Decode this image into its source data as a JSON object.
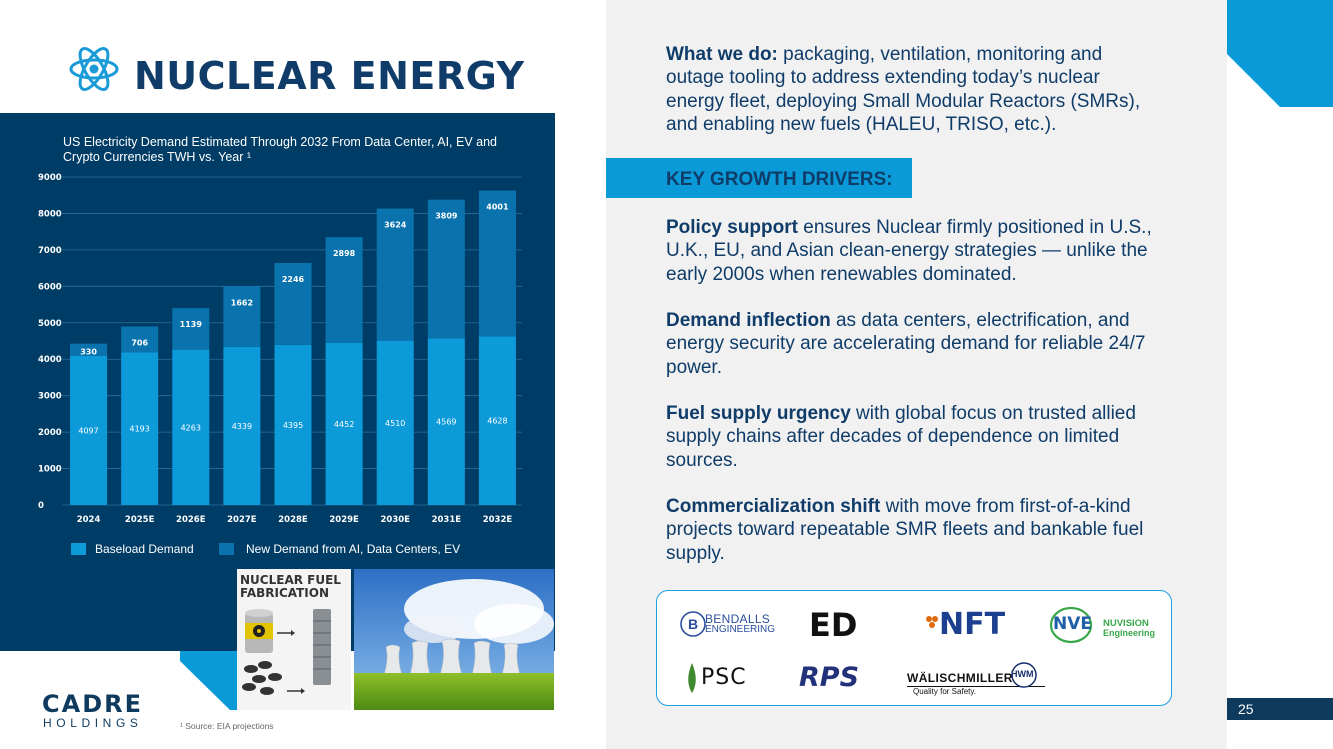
{
  "title": "NUCLEAR ENERGY",
  "chart_data": {
    "type": "bar",
    "stacked": true,
    "title": "US Electricity Demand Estimated Through 2032 From Data Center, AI, EV and Crypto Currencies TWH vs. Year ¹",
    "categories": [
      "2024",
      "2025E",
      "2026E",
      "2027E",
      "2028E",
      "2029E",
      "2030E",
      "2031E",
      "2032E"
    ],
    "series": [
      {
        "name": "Baseload Demand",
        "color": "#0c9ad9",
        "values": [
          4097,
          4193,
          4263,
          4339,
          4395,
          4452,
          4510,
          4569,
          4628
        ]
      },
      {
        "name": "New Demand from AI, Data Centers, EV",
        "color": "#0a72ad",
        "values": [
          330,
          706,
          1139,
          1662,
          2246,
          2898,
          3624,
          3809,
          4001
        ]
      }
    ],
    "yticks": [
      "0",
      "1000",
      "2000",
      "3000",
      "4000",
      "5000",
      "6000",
      "7000",
      "8000",
      "9000"
    ],
    "ylim": [
      0,
      9000
    ],
    "grid": true,
    "legend": "bottom"
  },
  "images": {
    "fuel_label": "NUCLEAR FUEL FABRICATION"
  },
  "footer": {
    "logo": "CADRE",
    "logo_sub": "HOLDINGS",
    "footnote": "¹ Source: EIA projections",
    "page_number": "25"
  },
  "right": {
    "what_we_do_label": "What we do:",
    "what_we_do_text": " packaging, ventilation, monitoring and outage tooling to address extending today’s nuclear energy fleet, deploying Small Modular Reactors (SMRs), and enabling new fuels (HALEU, TRISO, etc.).",
    "drivers_heading": "KEY GROWTH DRIVERS:",
    "drivers": [
      {
        "label": "Policy support",
        "text": " ensures Nuclear firmly positioned in U.S., U.K., EU, and Asian clean-energy strategies — unlike the early 2000s when renewables dominated."
      },
      {
        "label": "Demand inflection",
        "text": " as data centers, electrification, and energy security are accelerating demand for reliable 24/7 power."
      },
      {
        "label": "Fuel supply urgency",
        "text": " with global focus on trusted allied supply chains after decades of dependence on limited sources."
      },
      {
        "label": "Commercialization shift",
        "text": " with move from first-of-a-kind projects toward repeatable SMR fleets and bankable fuel supply."
      }
    ]
  },
  "partners": {
    "bendalls": "BENDALLS",
    "bendalls_sub": "ENGINEERING",
    "ed": "ED",
    "nft": "NFT",
    "nve": "NVE",
    "nuvision": "NUVISION",
    "nuvision_sub": "Engineering",
    "psc": "PSC",
    "rps": "RPS",
    "walischmiller": "WÄLISCHMILLER",
    "walischmiller_tag": "Quality for Safety.",
    "hwm": "HWM"
  }
}
